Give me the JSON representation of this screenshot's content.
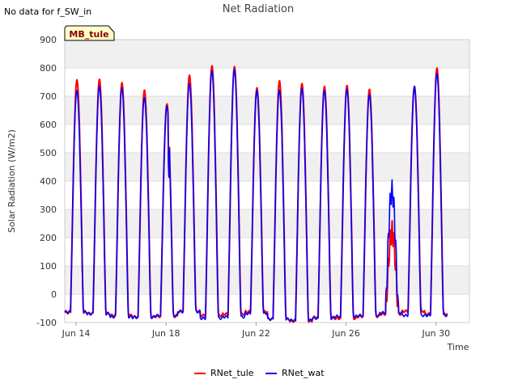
{
  "status_text": "No data for f_SW_in",
  "badge_label": "MB_tule",
  "chart_data": {
    "type": "line",
    "title": "Net Radiation",
    "xlabel": "Time",
    "ylabel": "Solar Radiation (W/m2)",
    "xlim": [
      0,
      17
    ],
    "ylim": [
      -100,
      900
    ],
    "yticks": [
      -100,
      0,
      100,
      200,
      300,
      400,
      500,
      600,
      700,
      800,
      900
    ],
    "xticks": [
      {
        "day": 0,
        "label": "Jun 14"
      },
      {
        "day": 4,
        "label": "Jun 18"
      },
      {
        "day": 8,
        "label": "Jun 22"
      },
      {
        "day": 12,
        "label": "Jun 26"
      },
      {
        "day": 16,
        "label": "Jun 30"
      }
    ],
    "grid": true,
    "legend_position": "bottom-center",
    "colors": {
      "RNet_tule": "#ff0000",
      "RNet_wat": "#0000ff",
      "band": "#f0f0f0",
      "grid": "#dddddd"
    },
    "days": [
      "Jun 14",
      "Jun 15",
      "Jun 16",
      "Jun 17",
      "Jun 18",
      "Jun 19",
      "Jun 20",
      "Jun 21",
      "Jun 22",
      "Jun 23",
      "Jun 24",
      "Jun 25",
      "Jun 26",
      "Jun 27",
      "Jun 28",
      "Jun 29",
      "Jun 30"
    ],
    "series": [
      {
        "name": "RNet_tule",
        "daily_peak": [
          758,
          760,
          748,
          722,
          673,
          775,
          808,
          805,
          730,
          755,
          745,
          735,
          738,
          725,
          220,
          735,
          800
        ],
        "night_min": [
          -65,
          -68,
          -75,
          -80,
          -78,
          -60,
          -75,
          -70,
          -62,
          -88,
          -95,
          -82,
          -85,
          -78,
          -70,
          -60,
          -70
        ]
      },
      {
        "name": "RNet_wat",
        "daily_peak": [
          720,
          735,
          730,
          695,
          665,
          745,
          790,
          795,
          720,
          722,
          728,
          720,
          725,
          705,
          365,
          735,
          780
        ],
        "night_min": [
          -62,
          -70,
          -80,
          -82,
          -75,
          -62,
          -85,
          -80,
          -68,
          -88,
          -92,
          -85,
          -78,
          -75,
          -65,
          -75,
          -75
        ]
      }
    ]
  }
}
